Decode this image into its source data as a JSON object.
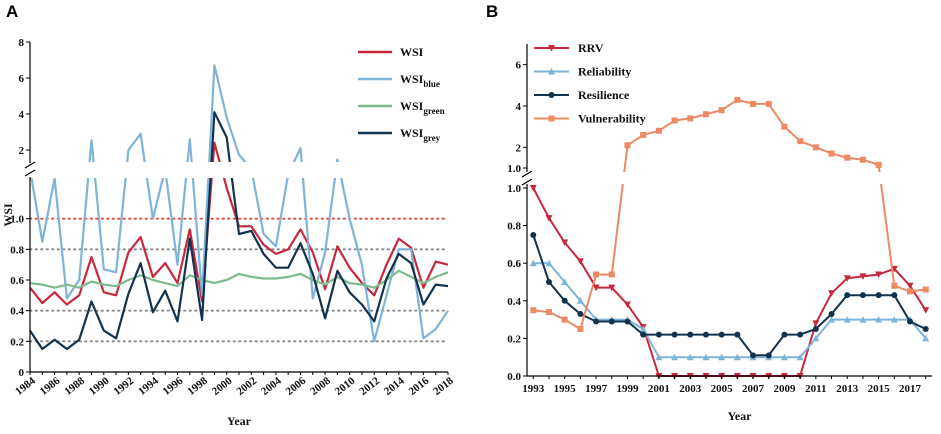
{
  "figure": {
    "panel_a_label": "A",
    "panel_b_label": "B"
  },
  "chart_data": [
    {
      "type": "line",
      "panel": "A",
      "xlabel": "Year",
      "ylabel": "WSI",
      "x": [
        1984,
        1985,
        1986,
        1987,
        1988,
        1989,
        1990,
        1991,
        1992,
        1993,
        1994,
        1995,
        1996,
        1997,
        1998,
        1999,
        2000,
        2001,
        2002,
        2003,
        2004,
        2005,
        2006,
        2007,
        2008,
        2009,
        2010,
        2011,
        2012,
        2013,
        2014,
        2015,
        2016,
        2017,
        2018
      ],
      "xticks": [
        "1984",
        "1986",
        "1988",
        "1990",
        "1992",
        "1994",
        "1996",
        "1998",
        "2000",
        "2002",
        "2004",
        "2006",
        "2008",
        "2010",
        "2012",
        "2014",
        "2016",
        "2018"
      ],
      "yticks_lower": [
        "0",
        "0.2",
        "0.4",
        "0.6",
        "0.8",
        "1.0"
      ],
      "yticks_upper": [
        "2",
        "4",
        "6",
        "8"
      ],
      "reference_lines": [
        {
          "value": 1.0,
          "color": "#e8413c"
        },
        {
          "value": 0.8,
          "color": "#888888"
        },
        {
          "value": 0.4,
          "color": "#888888"
        },
        {
          "value": 0.2,
          "color": "#888888"
        }
      ],
      "series": [
        {
          "name": "WSI",
          "sub": "",
          "color": "#c8283c",
          "values": [
            0.55,
            0.45,
            0.52,
            0.44,
            0.5,
            0.75,
            0.52,
            0.5,
            0.78,
            0.88,
            0.62,
            0.71,
            0.58,
            0.93,
            0.46,
            2.4,
            1.2,
            0.95,
            0.95,
            0.83,
            0.77,
            0.8,
            0.93,
            0.78,
            0.54,
            0.82,
            0.68,
            0.58,
            0.5,
            0.7,
            0.87,
            0.81,
            0.55,
            0.72,
            0.7
          ]
        },
        {
          "name": "WSI",
          "sub": "blue",
          "color": "#7fb3d8",
          "values": [
            1.6,
            0.85,
            1.4,
            0.48,
            0.6,
            2.55,
            0.67,
            0.65,
            2.0,
            2.9,
            1.0,
            1.6,
            0.7,
            2.6,
            0.5,
            6.7,
            3.8,
            1.9,
            1.6,
            0.9,
            0.82,
            1.5,
            2.1,
            0.48,
            0.78,
            1.8,
            1.0,
            0.7,
            0.2,
            0.5,
            0.8,
            0.8,
            0.22,
            0.28,
            0.4
          ]
        },
        {
          "name": "WSI",
          "sub": "green",
          "color": "#7fba8e",
          "values": [
            0.58,
            0.57,
            0.55,
            0.57,
            0.55,
            0.59,
            0.57,
            0.56,
            0.6,
            0.63,
            0.6,
            0.58,
            0.56,
            0.63,
            0.6,
            0.58,
            0.6,
            0.64,
            0.62,
            0.61,
            0.61,
            0.62,
            0.64,
            0.6,
            0.57,
            0.62,
            0.58,
            0.57,
            0.55,
            0.6,
            0.66,
            0.62,
            0.58,
            0.62,
            0.65
          ]
        },
        {
          "name": "WSI",
          "sub": "grey",
          "color": "#13324e",
          "values": [
            0.27,
            0.15,
            0.21,
            0.15,
            0.21,
            0.46,
            0.27,
            0.22,
            0.51,
            0.71,
            0.39,
            0.53,
            0.33,
            0.87,
            0.34,
            4.1,
            2.7,
            0.9,
            0.92,
            0.77,
            0.68,
            0.68,
            0.84,
            0.64,
            0.35,
            0.66,
            0.52,
            0.44,
            0.33,
            0.61,
            0.77,
            0.71,
            0.44,
            0.57,
            0.56
          ]
        }
      ]
    },
    {
      "type": "line",
      "panel": "B",
      "xlabel": "Year",
      "ylabel": "",
      "x": [
        1993,
        1994,
        1995,
        1996,
        1997,
        1998,
        1999,
        2000,
        2001,
        2002,
        2003,
        2004,
        2005,
        2006,
        2007,
        2008,
        2009,
        2010,
        2011,
        2012,
        2013,
        2014,
        2015,
        2016,
        2017,
        2018
      ],
      "xticks": [
        "1993",
        "1995",
        "1997",
        "1999",
        "2001",
        "2003",
        "2005",
        "2007",
        "2009",
        "2011",
        "2013",
        "2015",
        "2017"
      ],
      "yticks_lower": [
        "0.0",
        "0.2",
        "0.4",
        "0.6",
        "0.8",
        "1.0"
      ],
      "yticks_upper": [
        "1.0",
        "2",
        "4",
        "6"
      ],
      "series": [
        {
          "name": "RRV",
          "color": "#c8283c",
          "marker": "triangle-down",
          "values": [
            1.0,
            0.84,
            0.71,
            0.61,
            0.47,
            0.47,
            0.38,
            0.26,
            0.0,
            0.0,
            0.0,
            0.0,
            0.0,
            0.0,
            0.0,
            0.0,
            0.0,
            0.0,
            0.28,
            0.44,
            0.52,
            0.53,
            0.54,
            0.57,
            0.48,
            0.35
          ]
        },
        {
          "name": "Reliability",
          "color": "#7fb3d8",
          "marker": "triangle-up",
          "values": [
            0.6,
            0.6,
            0.5,
            0.4,
            0.3,
            0.3,
            0.3,
            0.25,
            0.1,
            0.1,
            0.1,
            0.1,
            0.1,
            0.1,
            0.1,
            0.1,
            0.1,
            0.1,
            0.2,
            0.3,
            0.3,
            0.3,
            0.3,
            0.3,
            0.3,
            0.2
          ]
        },
        {
          "name": "Resilience",
          "color": "#13324e",
          "marker": "circle",
          "values": [
            0.75,
            0.5,
            0.4,
            0.33,
            0.29,
            0.29,
            0.29,
            0.22,
            0.22,
            0.22,
            0.22,
            0.22,
            0.22,
            0.22,
            0.11,
            0.11,
            0.22,
            0.22,
            0.25,
            0.33,
            0.43,
            0.43,
            0.43,
            0.43,
            0.29,
            0.25
          ]
        },
        {
          "name": "Vulnerability",
          "color": "#eb8a63",
          "marker": "square",
          "values": [
            0.35,
            0.34,
            0.3,
            0.25,
            0.54,
            0.54,
            2.1,
            2.6,
            2.8,
            3.3,
            3.4,
            3.6,
            3.8,
            4.3,
            4.1,
            4.1,
            3.0,
            2.3,
            2.0,
            1.7,
            1.5,
            1.4,
            1.15,
            0.48,
            0.45,
            0.46
          ]
        }
      ]
    }
  ]
}
